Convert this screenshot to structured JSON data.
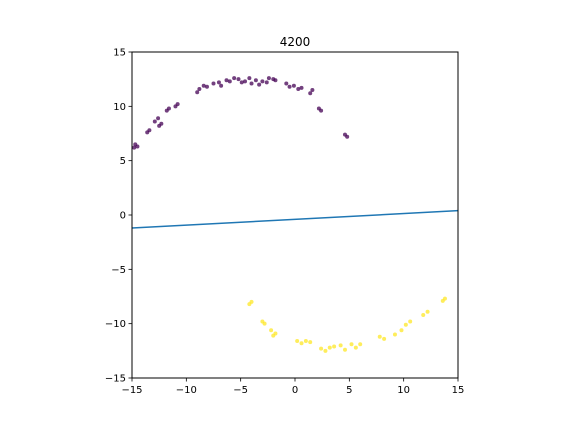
{
  "chart_data": {
    "type": "scatter",
    "title": "4200",
    "xlabel": "",
    "ylabel": "",
    "xlim": [
      -15,
      15
    ],
    "ylim": [
      -15,
      15
    ],
    "xticks": [
      -15,
      -10,
      -5,
      0,
      5,
      10,
      15
    ],
    "yticks": [
      -15,
      -10,
      -5,
      0,
      5,
      10,
      15
    ],
    "grid": false,
    "legend": "none",
    "colors": {
      "class_0": "#440154",
      "class_1": "#fde725",
      "boundary": "#1f77b4"
    },
    "series": [
      {
        "label_class": 0,
        "color": "#440154",
        "x": [
          -14.7,
          -14.5,
          -14.8,
          -13.6,
          -13.4,
          -12.9,
          -12.6,
          -12.3,
          -12.5,
          -11.8,
          -11.6,
          -11.0,
          -10.8,
          -9.0,
          -8.8,
          -8.4,
          -8.1,
          -7.5,
          -7.0,
          -6.8,
          -6.3,
          -6.0,
          -5.6,
          -5.2,
          -4.9,
          -4.6,
          -4.2,
          -4.0,
          -3.6,
          -3.3,
          -3.0,
          -2.6,
          -2.4,
          -2.0,
          -1.8,
          -0.8,
          -0.5,
          -0.1,
          0.3,
          0.6,
          1.4,
          1.6,
          2.2,
          2.4,
          4.6,
          4.8
        ],
        "y": [
          6.5,
          6.3,
          6.2,
          7.6,
          7.8,
          8.6,
          8.9,
          8.4,
          8.2,
          9.6,
          9.8,
          10.0,
          10.2,
          11.3,
          11.6,
          11.9,
          11.8,
          12.1,
          12.2,
          11.9,
          12.4,
          12.3,
          12.6,
          12.5,
          12.2,
          12.3,
          12.6,
          12.1,
          12.4,
          12.0,
          12.3,
          12.2,
          12.6,
          12.5,
          12.4,
          12.1,
          11.8,
          11.9,
          11.6,
          11.7,
          11.2,
          11.5,
          9.8,
          9.6,
          7.4,
          7.2
        ]
      },
      {
        "label_class": 1,
        "color": "#fde725",
        "x": [
          -4.2,
          -4.0,
          -3.0,
          -2.8,
          -2.2,
          -2.0,
          -1.8,
          0.2,
          0.6,
          1.0,
          1.4,
          2.4,
          2.8,
          3.2,
          3.6,
          4.2,
          4.6,
          5.2,
          5.6,
          6.0,
          7.8,
          8.2,
          9.2,
          9.8,
          10.2,
          10.6,
          11.8,
          12.2,
          13.6,
          13.8
        ],
        "y": [
          -8.2,
          -8.0,
          -9.8,
          -10.0,
          -10.6,
          -11.1,
          -10.9,
          -11.6,
          -11.8,
          -11.6,
          -11.7,
          -12.3,
          -12.5,
          -12.2,
          -12.1,
          -12.0,
          -12.4,
          -11.9,
          -12.2,
          -11.9,
          -11.2,
          -11.4,
          -11.0,
          -10.6,
          -10.1,
          -9.8,
          -9.2,
          -8.9,
          -7.9,
          -7.7
        ]
      }
    ],
    "line": {
      "x": [
        -15,
        15
      ],
      "y": [
        -1.2,
        0.4
      ]
    }
  }
}
